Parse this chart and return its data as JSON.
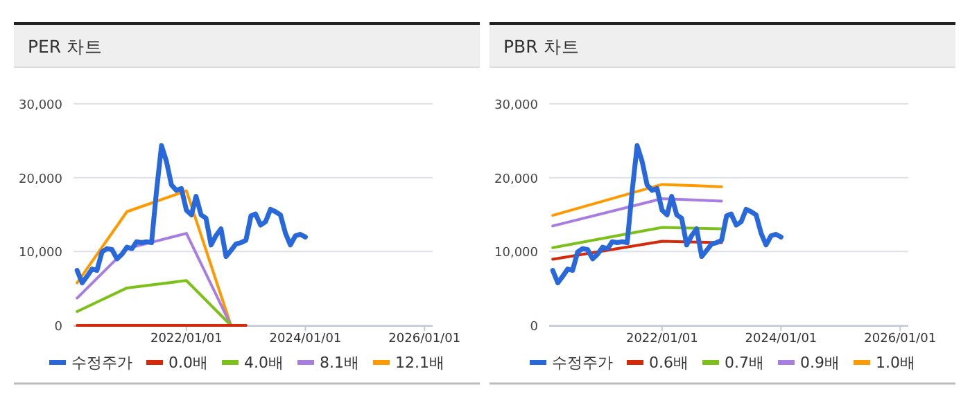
{
  "chart_data": [
    {
      "type": "line",
      "title": "PER 차트",
      "x": [
        "2020-03",
        "2020-04",
        "2020-05",
        "2020-06",
        "2020-07",
        "2020-08",
        "2020-09",
        "2020-10",
        "2020-11",
        "2020-12",
        "2021-01",
        "2021-02",
        "2021-03",
        "2021-04",
        "2021-05",
        "2021-06",
        "2021-07",
        "2021-08",
        "2021-09",
        "2021-10",
        "2021-11",
        "2021-12",
        "2022-01",
        "2022-02",
        "2022-03",
        "2022-04",
        "2022-05",
        "2022-06",
        "2022-07",
        "2022-08",
        "2022-09",
        "2022-10",
        "2022-11",
        "2022-12",
        "2023-01",
        "2023-02",
        "2023-03",
        "2023-04",
        "2023-05",
        "2023-06",
        "2023-07",
        "2023-08",
        "2023-09",
        "2023-10",
        "2023-11",
        "2023-12",
        "2024-01"
      ],
      "series": [
        {
          "name": "수정주가",
          "color": "#2868d8",
          "values": [
            7450,
            5760,
            6640,
            7640,
            7450,
            9950,
            10400,
            10270,
            9010,
            9640,
            10580,
            10400,
            11330,
            11200,
            11330,
            11200,
            18090,
            24350,
            22160,
            19030,
            18280,
            18530,
            15590,
            14960,
            17470,
            14960,
            14520,
            10890,
            12140,
            13080,
            9330,
            10140,
            11020,
            11200,
            11520,
            14840,
            15090,
            13580,
            14020,
            15710,
            15400,
            14960,
            12460,
            10890,
            12140,
            12330,
            11960
          ]
        },
        {
          "name": "0.0배",
          "color": "#d42a0a",
          "x": [
            "2020-03",
            "2021-01",
            "2022-01",
            "2022-10",
            "2023-01"
          ],
          "values": [
            0,
            0,
            0,
            0,
            0
          ]
        },
        {
          "name": "4.0배",
          "color": "#7cc11a",
          "x": [
            "2020-03",
            "2021-01",
            "2022-01",
            "2022-10",
            "2023-01"
          ],
          "values": [
            1880,
            5070,
            6070,
            0,
            0
          ]
        },
        {
          "name": "8.1배",
          "color": "#a77ee0",
          "x": [
            "2020-03",
            "2021-01",
            "2022-01",
            "2022-10",
            "2023-01"
          ],
          "values": [
            3690,
            10390,
            12460,
            0,
            0
          ]
        },
        {
          "name": "12.1배",
          "color": "#ff9900",
          "x": [
            "2020-03",
            "2021-01",
            "2022-01",
            "2022-10",
            "2023-01"
          ],
          "values": [
            5760,
            15400,
            18220,
            0,
            0
          ]
        }
      ],
      "xlim": [
        "2020-02-08",
        "2026-02-20"
      ],
      "ylim": [
        0,
        30000
      ],
      "xticks": [
        {
          "value": "2022-01-01",
          "label": "2022/01/01"
        },
        {
          "value": "2024-01-01",
          "label": "2024/01/01"
        },
        {
          "value": "2026-01-01",
          "label": "2026/01/01"
        }
      ],
      "yticks": [
        0,
        {
          "value": 10000,
          "label": "10,000"
        },
        {
          "value": 20000,
          "label": "20,000"
        },
        {
          "value": 30000,
          "label": "30,000"
        }
      ],
      "grid": "y",
      "legend": "bottom"
    },
    {
      "type": "line",
      "title": "PBR 차트",
      "x": [
        "2020-03",
        "2020-04",
        "2020-05",
        "2020-06",
        "2020-07",
        "2020-08",
        "2020-09",
        "2020-10",
        "2020-11",
        "2020-12",
        "2021-01",
        "2021-02",
        "2021-03",
        "2021-04",
        "2021-05",
        "2021-06",
        "2021-07",
        "2021-08",
        "2021-09",
        "2021-10",
        "2021-11",
        "2021-12",
        "2022-01",
        "2022-02",
        "2022-03",
        "2022-04",
        "2022-05",
        "2022-06",
        "2022-07",
        "2022-08",
        "2022-09",
        "2022-10",
        "2022-11",
        "2022-12",
        "2023-01",
        "2023-02",
        "2023-03",
        "2023-04",
        "2023-05",
        "2023-06",
        "2023-07",
        "2023-08",
        "2023-09",
        "2023-10",
        "2023-11",
        "2023-12",
        "2024-01"
      ],
      "series": [
        {
          "name": "수정주가",
          "color": "#2868d8",
          "values": [
            7450,
            5760,
            6640,
            7640,
            7450,
            9950,
            10400,
            10270,
            9010,
            9640,
            10580,
            10400,
            11330,
            11200,
            11330,
            11200,
            18090,
            24350,
            22160,
            19030,
            18280,
            18530,
            15590,
            14960,
            17470,
            14960,
            14520,
            10890,
            12140,
            13080,
            9330,
            10140,
            11020,
            11200,
            11520,
            14840,
            15090,
            13580,
            14020,
            15710,
            15400,
            14960,
            12460,
            10890,
            12140,
            12330,
            11960
          ]
        },
        {
          "name": "0.6배",
          "color": "#d42a0a",
          "x": [
            "2020-03",
            "2022-01",
            "2023-01"
          ],
          "values": [
            8950,
            11390,
            11200
          ]
        },
        {
          "name": "0.7배",
          "color": "#7cc11a",
          "x": [
            "2020-03",
            "2022-01",
            "2023-01"
          ],
          "values": [
            10520,
            13270,
            13080
          ]
        },
        {
          "name": "0.9배",
          "color": "#a77ee0",
          "x": [
            "2020-03",
            "2022-01",
            "2023-01"
          ],
          "values": [
            13460,
            17150,
            16840
          ]
        },
        {
          "name": "1.0배",
          "color": "#ff9900",
          "x": [
            "2020-03",
            "2022-01",
            "2023-01"
          ],
          "values": [
            14900,
            19090,
            18780
          ]
        }
      ],
      "xlim": [
        "2020-02-08",
        "2026-02-20"
      ],
      "ylim": [
        0,
        30000
      ],
      "xticks": [
        {
          "value": "2022-01-01",
          "label": "2022/01/01"
        },
        {
          "value": "2024-01-01",
          "label": "2024/01/01"
        },
        {
          "value": "2026-01-01",
          "label": "2026/01/01"
        }
      ],
      "yticks": [
        0,
        {
          "value": 10000,
          "label": "10,000"
        },
        {
          "value": 20000,
          "label": "20,000"
        },
        {
          "value": 30000,
          "label": "30,000"
        }
      ],
      "grid": "y",
      "legend": "bottom"
    }
  ]
}
